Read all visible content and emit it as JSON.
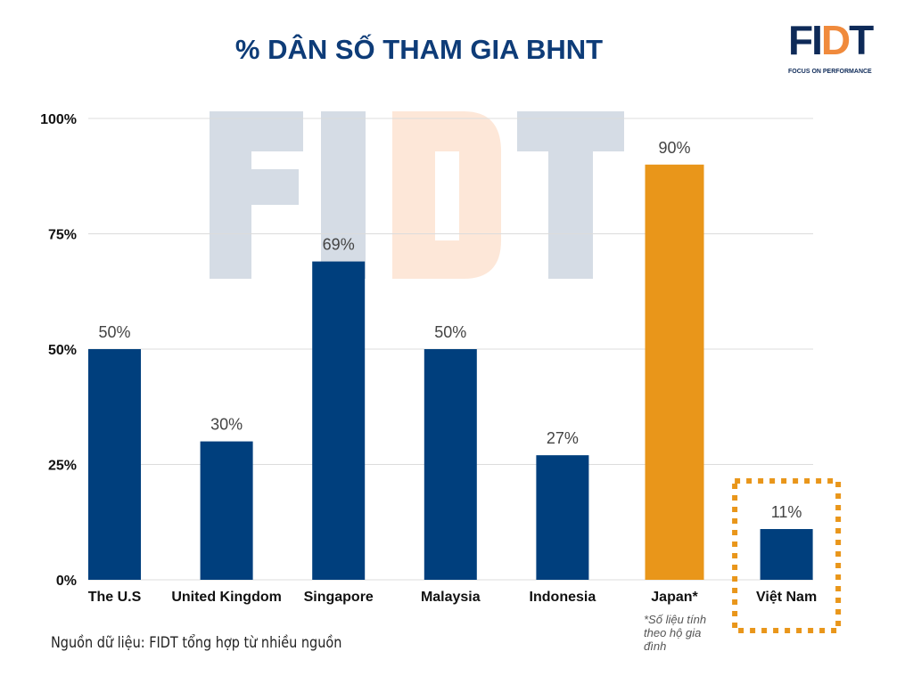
{
  "logo": {
    "text_left": "FI",
    "text_accent": "D",
    "text_right": "T",
    "tagline": "FOCUS ON PERFORMANCE"
  },
  "footer": {
    "source": "Nguồn dữ liệu: FIDT tổng hợp từ nhiều nguồn",
    "note": "*Số liệu tính theo hộ gia đình"
  },
  "chart_data": {
    "type": "bar",
    "title": "% DÂN SỐ THAM GIA BHNT",
    "categories": [
      "The U.S",
      "United Kingdom",
      "Singapore",
      "Malaysia",
      "Indonesia",
      "Japan*",
      "Việt Nam"
    ],
    "values": [
      50,
      30,
      69,
      50,
      27,
      90,
      11
    ],
    "data_labels": [
      "50%",
      "30%",
      "69%",
      "50%",
      "27%",
      "90%",
      "11%"
    ],
    "ylim": [
      0,
      100
    ],
    "yticks": [
      "0%",
      "25%",
      "50%",
      "75%",
      "100%"
    ],
    "grid": true,
    "colors": {
      "default": "#003f7d",
      "highlight": "#e9961a",
      "highlight_box": "#e9961a"
    },
    "highlighted_category": "Japan*",
    "boxed_category": "Việt Nam"
  }
}
